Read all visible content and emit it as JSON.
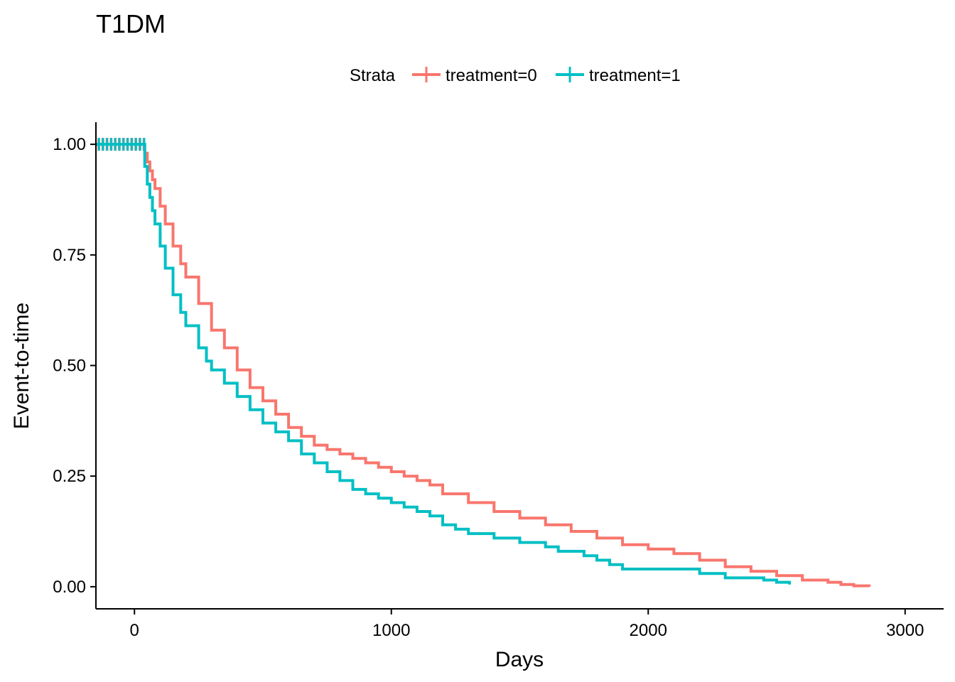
{
  "chart_data": {
    "type": "line",
    "step": true,
    "title": "T1DM",
    "xlabel": "Days",
    "ylabel": "Event-to-time",
    "xlim": [
      -150,
      3150
    ],
    "ylim": [
      -0.05,
      1.05
    ],
    "xticks": [
      0,
      1000,
      2000,
      3000
    ],
    "yticks": [
      0.0,
      0.25,
      0.5,
      0.75,
      1.0
    ],
    "xtick_labels": [
      "0",
      "1000",
      "2000",
      "3000"
    ],
    "ytick_labels": [
      "0.00",
      "0.25",
      "0.50",
      "0.75",
      "1.00"
    ],
    "grid": false,
    "legend": {
      "title": "Strata",
      "position": "top",
      "entries": [
        "treatment=0",
        "treatment=1"
      ]
    },
    "series": [
      {
        "name": "treatment=0",
        "color": "#F8766D",
        "x": [
          -150,
          30,
          40,
          50,
          60,
          70,
          80,
          100,
          120,
          150,
          180,
          200,
          250,
          300,
          350,
          400,
          450,
          500,
          550,
          600,
          650,
          700,
          750,
          800,
          850,
          900,
          950,
          1000,
          1050,
          1100,
          1150,
          1200,
          1300,
          1400,
          1500,
          1600,
          1700,
          1800,
          1900,
          2000,
          2100,
          2200,
          2300,
          2400,
          2500,
          2600,
          2700,
          2750,
          2800,
          2860
        ],
        "y": [
          1.0,
          1.0,
          0.98,
          0.96,
          0.94,
          0.92,
          0.9,
          0.86,
          0.82,
          0.77,
          0.73,
          0.7,
          0.64,
          0.58,
          0.54,
          0.49,
          0.45,
          0.42,
          0.39,
          0.36,
          0.34,
          0.32,
          0.31,
          0.3,
          0.29,
          0.28,
          0.27,
          0.26,
          0.25,
          0.24,
          0.23,
          0.21,
          0.19,
          0.17,
          0.155,
          0.14,
          0.125,
          0.11,
          0.095,
          0.085,
          0.075,
          0.06,
          0.045,
          0.035,
          0.025,
          0.015,
          0.01,
          0.005,
          0.002,
          0.0
        ]
      },
      {
        "name": "treatment=1",
        "color": "#00BFC4",
        "x": [
          -150,
          30,
          40,
          50,
          60,
          70,
          80,
          100,
          120,
          150,
          180,
          200,
          250,
          280,
          300,
          350,
          400,
          450,
          500,
          550,
          600,
          650,
          700,
          750,
          800,
          850,
          900,
          950,
          1000,
          1050,
          1100,
          1150,
          1200,
          1250,
          1300,
          1400,
          1500,
          1600,
          1650,
          1700,
          1750,
          1800,
          1850,
          1900,
          1950,
          2000,
          2100,
          2200,
          2300,
          2400,
          2450,
          2500,
          2550
        ],
        "y": [
          1.0,
          1.0,
          0.95,
          0.91,
          0.88,
          0.85,
          0.82,
          0.77,
          0.72,
          0.66,
          0.62,
          0.59,
          0.54,
          0.51,
          0.49,
          0.46,
          0.43,
          0.4,
          0.37,
          0.35,
          0.33,
          0.3,
          0.28,
          0.26,
          0.24,
          0.22,
          0.21,
          0.2,
          0.19,
          0.18,
          0.17,
          0.16,
          0.14,
          0.13,
          0.12,
          0.11,
          0.1,
          0.09,
          0.08,
          0.08,
          0.07,
          0.06,
          0.05,
          0.04,
          0.04,
          0.04,
          0.04,
          0.03,
          0.02,
          0.02,
          0.015,
          0.01,
          0.005
        ]
      }
    ]
  }
}
